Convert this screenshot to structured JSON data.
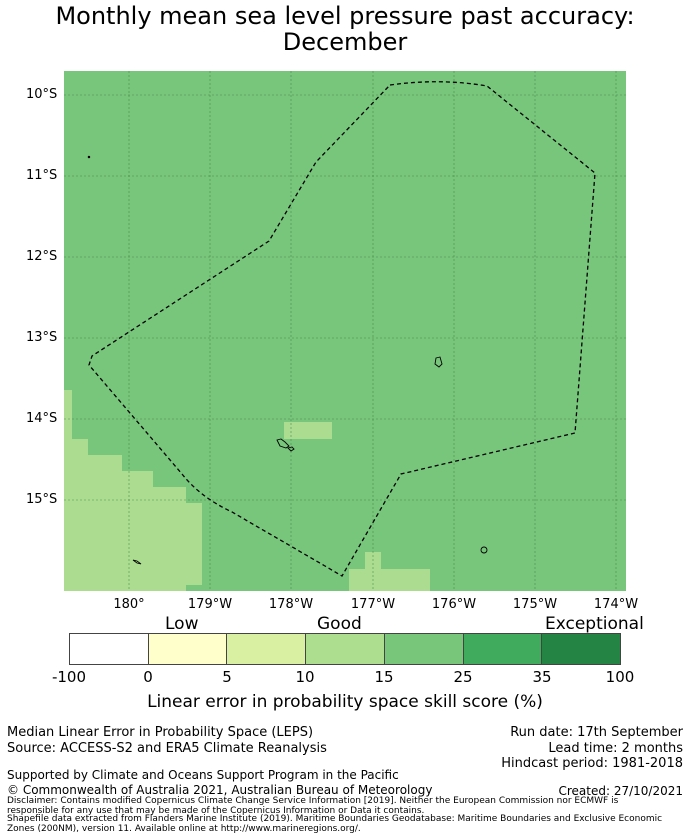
{
  "title": {
    "line1": "Monthly mean sea level pressure past accuracy:",
    "line2": "December"
  },
  "map": {
    "lat_labels": [
      "10°S",
      "11°S",
      "12°S",
      "13°S",
      "14°S",
      "15°S"
    ],
    "lon_labels": [
      "180°",
      "179°W",
      "178°W",
      "177°W",
      "176°W",
      "175°W",
      "174°W"
    ],
    "colors": {
      "good_dark": "#78c67b",
      "good_light": "#acdc8f",
      "grid": "#3e7a43",
      "boundary": "#000000"
    }
  },
  "colorbar": {
    "category_labels": [
      "Low",
      "Good",
      "Exceptional"
    ],
    "tick_labels": [
      "-100",
      "0",
      "5",
      "10",
      "15",
      "25",
      "35",
      "100"
    ],
    "colors": [
      "#ffffff",
      "#ffffcc",
      "#d9f0a3",
      "#addd8e",
      "#78c679",
      "#41ab5d",
      "#238443"
    ],
    "title": "Linear error in probability space skill score (%)"
  },
  "footer": {
    "method": "Median Linear Error in Probability Space (LEPS)",
    "source": "Source: ACCESS-S2 and ERA5 Climate Reanalysis",
    "run_date": "Run date: 17th September",
    "lead_time": "Lead time: 2 months",
    "hindcast": "Hindcast period: 1981-2018",
    "supported": "Supported by Climate and Oceans Support Program in the Pacific",
    "copyright": "© Commonwealth of Australia 2021, Australian Bureau of Meteorology",
    "created": "Created: 27/10/2021",
    "disclaimer1": "Disclaimer: Contains modified Copernicus Climate Change Service Information [2019]. Neither the European Commission nor ECMWF is",
    "disclaimer2": "responsible for any use that may be made of the Copernicus Information or Data it contains.",
    "shapefile1": "Shapefile data extracted from Flanders Marine Institute (2019). Maritime Boundaries Geodatabase: Maritime Boundaries and Exclusive Economic",
    "shapefile2": "Zones (200NM), version 11. Available online at http://www.marineregions.org/."
  }
}
